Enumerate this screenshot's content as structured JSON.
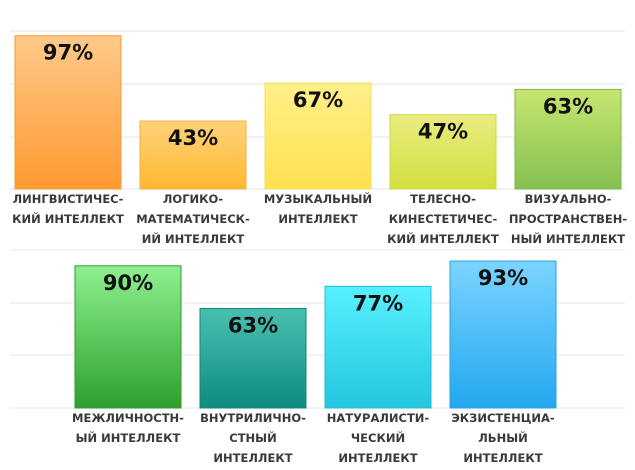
{
  "chart_data": [
    {
      "type": "bar",
      "categories": [
        [
          "ЛИНГВИСТИЧЕС-",
          "КИЙ ИНТЕЛЛЕКТ"
        ],
        [
          "ЛОГИКО-",
          "МАТЕМАТИЧЕСК-",
          "ИЙ ИНТЕЛЛЕКТ"
        ],
        [
          "МУЗЫКАЛЬНЫЙ",
          "ИНТЕЛЛЕКТ"
        ],
        [
          "ТЕЛЕСНО-",
          "КИНЕСТЕТИЧЕС-",
          "КИЙ ИНТЕЛЛЕКТ"
        ],
        [
          "ВИЗУАЛЬНО-",
          "ПРОСТРАНСТВЕН-",
          "НЫЙ ИНТЕЛЛЕКТ"
        ]
      ],
      "values": [
        97,
        43,
        67,
        47,
        63
      ],
      "value_labels": [
        "97%",
        "43%",
        "67%",
        "47%",
        "63%"
      ],
      "ylim": [
        0,
        100
      ],
      "grid": true,
      "colors": [
        [
          "#ffc98a",
          "#ff9a30",
          "#f59a3a"
        ],
        [
          "#ffd27a",
          "#ffb830",
          "#f0b040"
        ],
        [
          "#fff08a",
          "#ffe050",
          "#f5dd55"
        ],
        [
          "#eaec80",
          "#d2df40",
          "#c8d840"
        ],
        [
          "#c6e670",
          "#84c050",
          "#7cb84a"
        ]
      ]
    },
    {
      "type": "bar",
      "categories": [
        [
          "МЕЖЛИЧНОСТН-",
          "ЫЙ ИНТЕЛЛЕКТ"
        ],
        [
          "ВНУТРИЛИЧНО-",
          "СТНЫЙ",
          "ИНТЕЛЛЕКТ"
        ],
        [
          "НАТУРАЛИСТИ-",
          "ЧЕСКИЙ",
          "ИНТЕЛЛЕКТ"
        ],
        [
          "ЭКЗИСТЕНЦИА-",
          "ЛЬНЫЙ",
          "ИНТЕЛЛЕКТ"
        ]
      ],
      "values": [
        90,
        63,
        77,
        93
      ],
      "value_labels": [
        "90%",
        "63%",
        "77%",
        "93%"
      ],
      "ylim": [
        0,
        100
      ],
      "grid": true,
      "colors": [
        [
          "#8ef08e",
          "#2ea02e",
          "#2f9a2f"
        ],
        [
          "#48c0b0",
          "#0e8c7e",
          "#12877a"
        ],
        [
          "#58f0ff",
          "#22c6de",
          "#20bcd4"
        ],
        [
          "#7cd4ff",
          "#22a8f0",
          "#2aa0e6"
        ]
      ]
    }
  ]
}
